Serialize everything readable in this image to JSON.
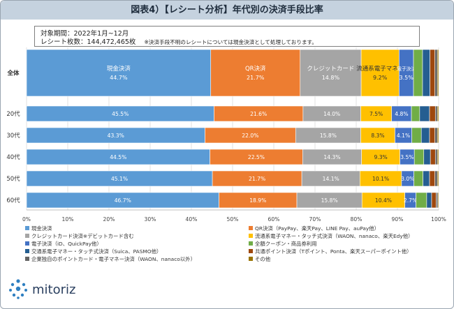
{
  "header": {
    "title": "図表4）【レシート分析】年代別の決済手段比率"
  },
  "info": {
    "period": "対象期間：2022年1月~12月",
    "count": "レシート枚数：144,472,465枚",
    "note": "※決済手段不明のレシートについては現金決済として処理しております。"
  },
  "brand": {
    "logo_text": "mitoriz"
  },
  "chart_data": {
    "type": "bar",
    "orientation": "horizontal",
    "stacked": "percent",
    "categories": [
      "全体",
      "20代",
      "30代",
      "40代",
      "50代",
      "60代"
    ],
    "xlim": [
      0,
      100
    ],
    "x_ticks": [
      "0%",
      "10%",
      "20%",
      "30%",
      "40%",
      "50%",
      "60%",
      "70%",
      "80%",
      "90%",
      "100%"
    ],
    "legend_position": "bottom",
    "series": [
      {
        "name": "現金決済",
        "short": "現金決済",
        "color": "#5b9bd5",
        "values": [
          44.7,
          45.5,
          43.3,
          44.5,
          45.1,
          46.7
        ],
        "labels": [
          "44.7%",
          "45.5%",
          "43.3%",
          "44.5%",
          "45.1%",
          "46.7%"
        ]
      },
      {
        "name": "QR決済（PayPay、楽天Pay、LINE Pay、auPay他）",
        "short": "QR決済",
        "color": "#ed7d31",
        "values": [
          21.7,
          21.6,
          22.0,
          22.5,
          21.7,
          18.9
        ],
        "labels": [
          "21.7%",
          "21.6%",
          "22.0%",
          "22.5%",
          "21.7%",
          "18.9%"
        ]
      },
      {
        "name": "クレジットカード決済※デビットカード含む",
        "short": "クレジットカード",
        "color": "#a5a5a5",
        "values": [
          14.8,
          14.0,
          15.8,
          14.3,
          14.1,
          15.8
        ],
        "labels": [
          "14.8%",
          "14.0%",
          "15.8%",
          "14.3%",
          "14.1%",
          "15.8%"
        ]
      },
      {
        "name": "流通系電子マネー・タッチ式決済（WAON、nanaco、楽天Edy他）",
        "short": "流通系電子マネー",
        "color": "#ffc000",
        "values": [
          9.2,
          7.5,
          8.3,
          9.3,
          10.1,
          10.4
        ],
        "labels": [
          "9.2%",
          "7.5%",
          "8.3%",
          "9.3%",
          "10.1%",
          "10.4%"
        ]
      },
      {
        "name": "電子決済（iD、QuickPay他）",
        "short": "電子決済",
        "color": "#4472c4",
        "values": [
          3.5,
          4.8,
          4.1,
          3.5,
          3.0,
          2.7
        ],
        "labels": [
          "3.5%",
          "4.8%",
          "4.1%",
          "3.5%",
          "3.0%",
          "2.7%"
        ]
      },
      {
        "name": "全額クーポン・商品券利用",
        "color": "#70ad47",
        "values": [
          2.2,
          2.0,
          2.3,
          2.3,
          2.2,
          2.6
        ]
      },
      {
        "name": "交通系電子マネー・タッチ式決済（Suica、PASMO他）",
        "color": "#255e91",
        "values": [
          1.8,
          2.4,
          2.0,
          1.6,
          1.6,
          1.2
        ]
      },
      {
        "name": "共通ポイント決済（Tポイント、Ponta、楽天スーパーポイント他）",
        "color": "#9e480e",
        "values": [
          1.2,
          1.4,
          1.3,
          1.2,
          1.3,
          1.1
        ]
      },
      {
        "name": "企業独自のポイントカード・電子マネー決済（WAON、nanaco以外）",
        "color": "#636363",
        "values": [
          0.6,
          0.5,
          0.6,
          0.5,
          0.6,
          0.4
        ]
      },
      {
        "name": "その他",
        "color": "#997300",
        "values": [
          0.3,
          0.3,
          0.3,
          0.3,
          0.3,
          0.2
        ]
      }
    ]
  }
}
